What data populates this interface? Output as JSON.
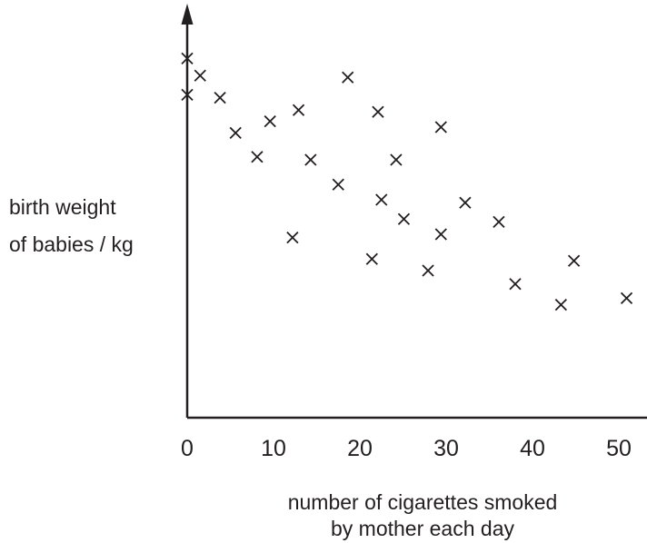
{
  "chart_data": {
    "type": "scatter",
    "title": "",
    "xlabel_lines": [
      "number of cigarettes smoked",
      "by mother each day"
    ],
    "ylabel_lines": [
      "birth weight",
      "of babies / kg"
    ],
    "xlim": [
      0,
      52
    ],
    "x_ticks": [
      0,
      10,
      20,
      30,
      40,
      50
    ],
    "x_tick_labels": [
      "0",
      "10",
      "20",
      "30",
      "40",
      "50"
    ],
    "y_ticks": [],
    "y_scale_note": "no y-axis tick labels shown; y values in arbitrary relative units (0 = axis origin)",
    "ylim": [
      0,
      100
    ],
    "marker": "x",
    "grid": false,
    "points": [
      {
        "x": 0.0,
        "y": 98.9
      },
      {
        "x": 0.0,
        "y": 88.9
      },
      {
        "x": 1.5,
        "y": 94.2
      },
      {
        "x": 3.8,
        "y": 88.1
      },
      {
        "x": 5.6,
        "y": 78.4
      },
      {
        "x": 8.1,
        "y": 71.8
      },
      {
        "x": 9.6,
        "y": 81.6
      },
      {
        "x": 12.2,
        "y": 49.6
      },
      {
        "x": 12.9,
        "y": 84.7
      },
      {
        "x": 14.3,
        "y": 71.0
      },
      {
        "x": 17.5,
        "y": 64.2
      },
      {
        "x": 18.6,
        "y": 93.7
      },
      {
        "x": 21.4,
        "y": 43.7
      },
      {
        "x": 22.1,
        "y": 84.2
      },
      {
        "x": 22.5,
        "y": 60.0
      },
      {
        "x": 24.2,
        "y": 71.0
      },
      {
        "x": 25.1,
        "y": 54.7
      },
      {
        "x": 27.9,
        "y": 40.5
      },
      {
        "x": 29.4,
        "y": 50.5
      },
      {
        "x": 29.4,
        "y": 80.0
      },
      {
        "x": 32.2,
        "y": 59.2
      },
      {
        "x": 36.1,
        "y": 53.9
      },
      {
        "x": 38.0,
        "y": 36.8
      },
      {
        "x": 43.3,
        "y": 31.1
      },
      {
        "x": 44.8,
        "y": 43.2
      },
      {
        "x": 50.9,
        "y": 32.9
      }
    ]
  }
}
